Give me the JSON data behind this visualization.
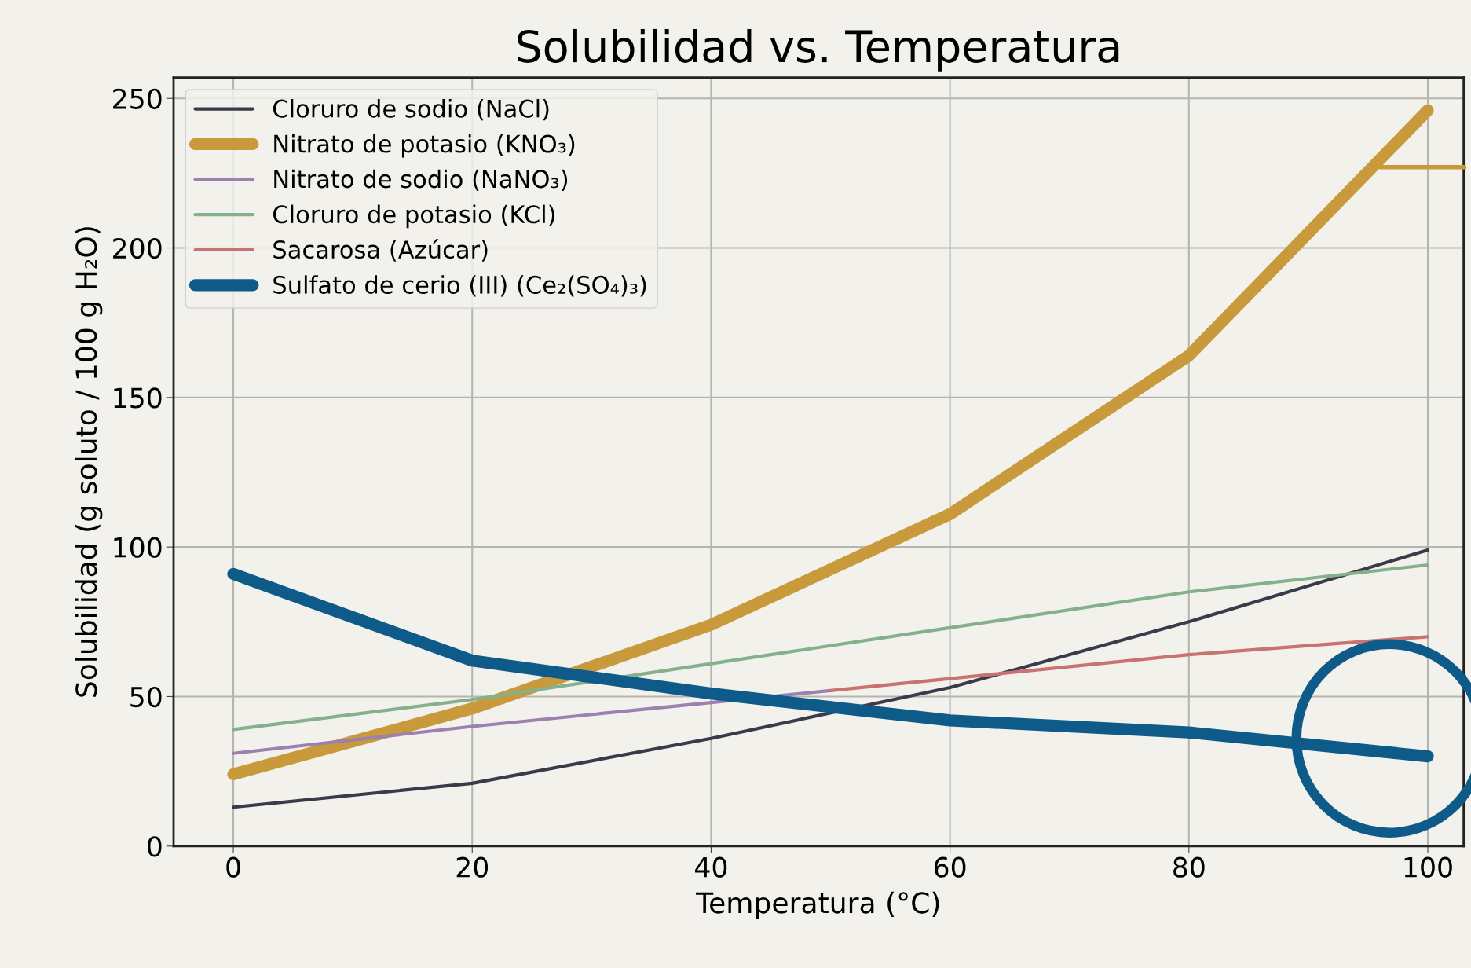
{
  "chart_data": {
    "type": "line",
    "title": "Solubilidad vs. Temperatura",
    "xlabel": "Temperatura (°C)",
    "ylabel": "Solubilidad (g soluto / 100 g H₂O)",
    "xlim": [
      -5,
      103
    ],
    "xticks": [
      0,
      20,
      40,
      60,
      80,
      100
    ],
    "ylim": [
      0,
      257
    ],
    "yticks": [
      0,
      50,
      100,
      150,
      200,
      250
    ],
    "grid": true,
    "legend": "top left",
    "line_style": "solid",
    "marker": "none",
    "series": [
      {
        "name": "Cloruro de sodio (NaCl)",
        "color": "#3a3a4a",
        "x": [
          0,
          20,
          40,
          60,
          80,
          100
        ],
        "values": [
          13,
          21,
          36,
          53,
          75,
          99
        ]
      },
      {
        "name": "Nitrato de potasio (KNO₃)",
        "color": "#c99a3c",
        "x": [
          0,
          20,
          40,
          60,
          80,
          100
        ],
        "values": [
          24,
          46,
          74,
          111,
          164,
          246
        ]
      },
      {
        "name": "Nitrato de sodio (NaNO₃)",
        "color": "#9b80b0",
        "x": [
          0,
          20,
          40,
          50
        ],
        "values": [
          31,
          40,
          48,
          52
        ]
      },
      {
        "name": "Cloruro de potasio (KCl)",
        "color": "#84b08c",
        "x": [
          0,
          20,
          40,
          60,
          80,
          100
        ],
        "values": [
          39,
          49,
          61,
          73,
          85,
          94
        ]
      },
      {
        "name": "Sacarosa (Azúcar)",
        "color": "#c87272",
        "x": [
          50,
          60,
          80,
          100
        ],
        "values": [
          52,
          56,
          64,
          70
        ]
      },
      {
        "name": "Sulfato de cerio (III) (Ce₂(SO₄)₃)",
        "color": "#0e5a88",
        "x": [
          0,
          20,
          40,
          60,
          80,
          100
        ],
        "values": [
          91,
          62,
          51,
          42,
          38,
          30
        ]
      },
      {
        "color": "#c99a3c",
        "x": [
          96,
          103
        ],
        "values": [
          227,
          227
        ]
      }
    ]
  }
}
